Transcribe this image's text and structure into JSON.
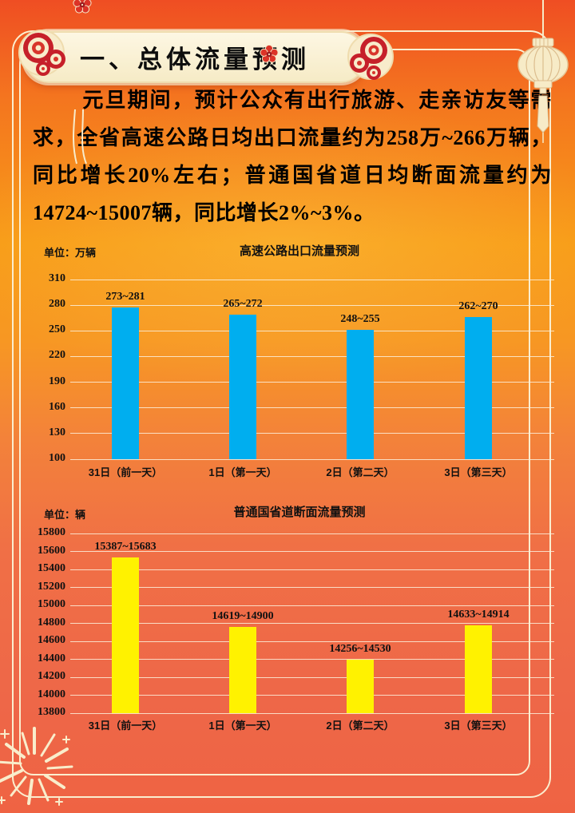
{
  "header": {
    "title": "一、总体流量预测"
  },
  "intro": {
    "text": "元旦期间，预计公众有出行旅游、走亲访友等需求，全省高速公路日均出口流量约为258万~266万辆，同比增长20%左右；普通国省道日均断面流量约为14724~15007辆，同比增长2%~3%。"
  },
  "colors": {
    "background_top": "#ef4e23",
    "background_middle": "#f89c17",
    "background_bottom": "#ee6748",
    "frame": "#fbeecf",
    "banner_background": "#fbf2d6",
    "banner_text": "#0d0d0d",
    "body_text": "#000000",
    "highway_bar": "#00aeef",
    "road_bar": "#fff200",
    "gridline": "#f8e8d0",
    "decoration_red": "#c6202a"
  },
  "icons": [
    "cloud-scroll-icon",
    "plum-blossom-icon",
    "lantern-icon",
    "firework-icon"
  ],
  "chart_data": [
    {
      "type": "bar",
      "title": "高速公路出口流量预测",
      "unit_label": "单位：万辆",
      "categories": [
        "31日（前一天）",
        "1日（第一天）",
        "2日（第二天）",
        "3日（第三天）"
      ],
      "values": [
        277,
        268.5,
        251.5,
        266
      ],
      "bar_labels": [
        "273~281",
        "265~272",
        "248~255",
        "262~270"
      ],
      "yticks": [
        310,
        280,
        250,
        220,
        190,
        160,
        130,
        100
      ],
      "ylim": [
        100,
        310
      ],
      "xlabel": "",
      "ylabel": "单位：万辆",
      "bar_color": "#00aeef",
      "grid": true,
      "legend_position": "none"
    },
    {
      "type": "bar",
      "title": "普通国省道断面流量预测",
      "unit_label": "单位：辆",
      "categories": [
        "31日（前一天）",
        "1日（第一天）",
        "2日（第二天）",
        "3日（第三天）"
      ],
      "values": [
        15535,
        14759.5,
        14393,
        14773.5
      ],
      "bar_labels": [
        "15387~15683",
        "14619~14900",
        "14256~14530",
        "14633~14914"
      ],
      "yticks": [
        15800,
        15600,
        15400,
        15200,
        15000,
        14800,
        14600,
        14400,
        14200,
        14000,
        13800
      ],
      "ylim": [
        13800,
        15800
      ],
      "xlabel": "",
      "ylabel": "单位：辆",
      "bar_color": "#fff200",
      "grid": true,
      "legend_position": "none"
    }
  ]
}
